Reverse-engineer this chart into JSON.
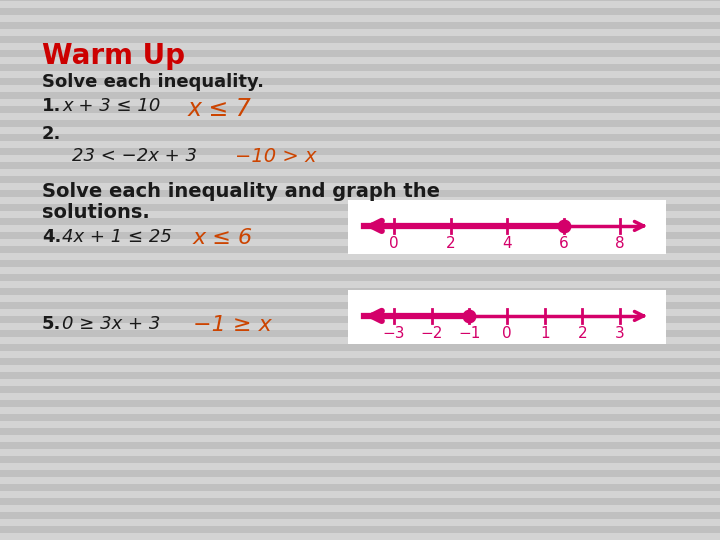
{
  "background_color": "#c8c8c8",
  "stripe_color_light": "#d4d4d4",
  "stripe_color_dark": "#c0c0c0",
  "title": "Warm Up",
  "title_color": "#cc0000",
  "title_fontsize": 20,
  "subtitle": "Solve each inequality.",
  "subtitle_fontsize": 13,
  "black_color": "#1a1a1a",
  "red_color": "#cc4400",
  "pink_color": "#d4006a",
  "number_line_bg": "#ffffff",
  "text_fontsize": 13,
  "bold_fontsize": 14,
  "numberline1_ticks": [
    0,
    2,
    4,
    6,
    8
  ],
  "numberline1_solution": 6,
  "numberline2_ticks": [
    -3,
    -2,
    -1,
    0,
    1,
    2,
    3
  ],
  "numberline2_solution": -1,
  "nl1_tick_labels": [
    "0",
    "2",
    "4",
    "6",
    "8"
  ],
  "nl2_tick_labels": [
    "−3",
    "−2",
    "−1",
    "0",
    "1",
    "2",
    "3"
  ]
}
